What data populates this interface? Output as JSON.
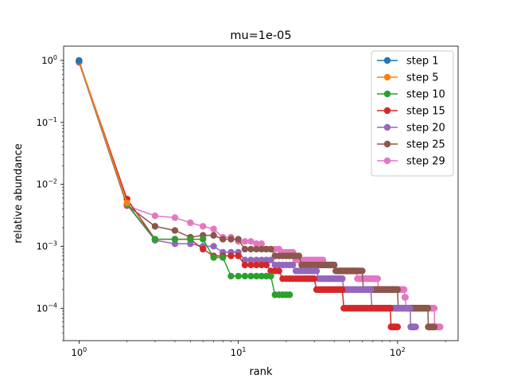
{
  "chart_data": {
    "type": "line",
    "title": "mu=1e-05",
    "xlabel": "rank",
    "ylabel": "relative abundance",
    "xscale": "log",
    "yscale": "log",
    "xlim": [
      0.8,
      240
    ],
    "ylim": [
      3e-05,
      1.7
    ],
    "grid": false,
    "legend_position": "top-right",
    "x_ticks": [
      {
        "value": 1,
        "base": "10",
        "exp": "0"
      },
      {
        "value": 10,
        "base": "10",
        "exp": "1"
      },
      {
        "value": 100,
        "base": "10",
        "exp": "2"
      }
    ],
    "y_ticks": [
      {
        "value": 0.0001,
        "base": "10",
        "exp": "−4"
      },
      {
        "value": 0.001,
        "base": "10",
        "exp": "−3"
      },
      {
        "value": 0.01,
        "base": "10",
        "exp": "−2"
      },
      {
        "value": 0.1,
        "base": "10",
        "exp": "−1"
      },
      {
        "value": 1,
        "base": "10",
        "exp": "0"
      }
    ],
    "series": [
      {
        "name": "step 1",
        "color": "#1f77b4",
        "points": [
          [
            1,
            1.0
          ]
        ]
      },
      {
        "name": "step 5",
        "color": "#ff7f0e",
        "points": [
          [
            1,
            0.995
          ],
          [
            2,
            0.005
          ]
        ]
      },
      {
        "name": "step 10",
        "color": "#2ca02c",
        "segments": [
          {
            "from": 1,
            "to": 1,
            "value": 0.98
          },
          {
            "from": 2,
            "to": 2,
            "value": 0.0048
          },
          {
            "from": 3,
            "to": 3,
            "value": 0.0013
          },
          {
            "from": 4,
            "to": 6,
            "value": 0.0013
          },
          {
            "from": 7,
            "to": 8,
            "value": 0.00066
          },
          {
            "from": 9,
            "to": 16,
            "value": 0.00033
          },
          {
            "from": 17,
            "to": 21,
            "value": 0.000165
          }
        ]
      },
      {
        "name": "step 15",
        "color": "#d62728",
        "segments": [
          {
            "from": 1,
            "to": 1,
            "value": 0.97
          },
          {
            "from": 2,
            "to": 2,
            "value": 0.0058
          },
          {
            "from": 3,
            "to": 5,
            "value": 0.0013
          },
          {
            "from": 6,
            "to": 6,
            "value": 0.0009
          },
          {
            "from": 7,
            "to": 10,
            "value": 0.0007
          },
          {
            "from": 11,
            "to": 15,
            "value": 0.0005
          },
          {
            "from": 16,
            "to": 18,
            "value": 0.0004
          },
          {
            "from": 19,
            "to": 30,
            "value": 0.0003
          },
          {
            "from": 31,
            "to": 45,
            "value": 0.0002
          },
          {
            "from": 46,
            "to": 90,
            "value": 0.0001
          },
          {
            "from": 91,
            "to": 100,
            "value": 5e-05
          }
        ]
      },
      {
        "name": "step 20",
        "color": "#9467bd",
        "segments": [
          {
            "from": 1,
            "to": 1,
            "value": 0.96
          },
          {
            "from": 2,
            "to": 2,
            "value": 0.0047
          },
          {
            "from": 3,
            "to": 3,
            "value": 0.00125
          },
          {
            "from": 4,
            "to": 5,
            "value": 0.0011
          },
          {
            "from": 6,
            "to": 7,
            "value": 0.001
          },
          {
            "from": 8,
            "to": 10,
            "value": 0.0008
          },
          {
            "from": 11,
            "to": 16,
            "value": 0.0006
          },
          {
            "from": 17,
            "to": 22,
            "value": 0.0005
          },
          {
            "from": 23,
            "to": 31,
            "value": 0.0004
          },
          {
            "from": 32,
            "to": 45,
            "value": 0.0003
          },
          {
            "from": 46,
            "to": 68,
            "value": 0.0002
          },
          {
            "from": 69,
            "to": 120,
            "value": 0.0001
          },
          {
            "from": 121,
            "to": 130,
            "value": 5e-05
          }
        ]
      },
      {
        "name": "step 25",
        "color": "#8c564b",
        "segments": [
          {
            "from": 1,
            "to": 1,
            "value": 0.95
          },
          {
            "from": 2,
            "to": 2,
            "value": 0.0046
          },
          {
            "from": 3,
            "to": 3,
            "value": 0.0021
          },
          {
            "from": 4,
            "to": 4,
            "value": 0.0018
          },
          {
            "from": 5,
            "to": 5,
            "value": 0.0014
          },
          {
            "from": 6,
            "to": 7,
            "value": 0.0015
          },
          {
            "from": 8,
            "to": 10,
            "value": 0.0013
          },
          {
            "from": 11,
            "to": 16,
            "value": 0.0009
          },
          {
            "from": 17,
            "to": 24,
            "value": 0.0007
          },
          {
            "from": 25,
            "to": 40,
            "value": 0.0005
          },
          {
            "from": 41,
            "to": 60,
            "value": 0.0004
          },
          {
            "from": 61,
            "to": 100,
            "value": 0.0002
          },
          {
            "from": 101,
            "to": 155,
            "value": 0.0001
          },
          {
            "from": 156,
            "to": 170,
            "value": 5e-05
          }
        ]
      },
      {
        "name": "step 29",
        "color": "#e377c2",
        "segments": [
          {
            "from": 1,
            "to": 1,
            "value": 0.93
          },
          {
            "from": 2,
            "to": 2,
            "value": 0.0045
          },
          {
            "from": 3,
            "to": 3,
            "value": 0.0031
          },
          {
            "from": 4,
            "to": 4,
            "value": 0.0029
          },
          {
            "from": 5,
            "to": 5,
            "value": 0.0024
          },
          {
            "from": 6,
            "to": 6,
            "value": 0.0021
          },
          {
            "from": 7,
            "to": 7,
            "value": 0.0019
          },
          {
            "from": 8,
            "to": 9,
            "value": 0.0014
          },
          {
            "from": 10,
            "to": 12,
            "value": 0.0012
          },
          {
            "from": 13,
            "to": 14,
            "value": 0.0011
          },
          {
            "from": 15,
            "to": 18,
            "value": 0.0009
          },
          {
            "from": 19,
            "to": 22,
            "value": 0.0008
          },
          {
            "from": 23,
            "to": 34,
            "value": 0.0006
          },
          {
            "from": 35,
            "to": 40,
            "value": 0.0005
          },
          {
            "from": 41,
            "to": 55,
            "value": 0.0004
          },
          {
            "from": 56,
            "to": 75,
            "value": 0.0003
          },
          {
            "from": 76,
            "to": 110,
            "value": 0.0002
          },
          {
            "from": 111,
            "to": 112,
            "value": 0.00015
          },
          {
            "from": 113,
            "to": 170,
            "value": 0.0001
          },
          {
            "from": 171,
            "to": 185,
            "value": 5e-05
          }
        ]
      }
    ]
  }
}
